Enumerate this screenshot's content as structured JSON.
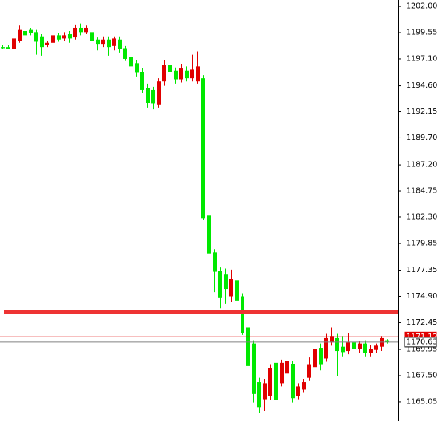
{
  "chart_data": {
    "type": "candlestick",
    "open": [
      1198.2,
      1198.2,
      1198.0,
      1198.8,
      1199.7,
      1199.8,
      1199.6,
      1199.2,
      1198.4,
      1198.6,
      1199.3,
      1199.0,
      1199.4,
      1199.1,
      1200.0,
      1199.6,
      1199.6,
      1198.9,
      1198.5,
      1198.9,
      1198.3,
      1198.9,
      1198.1,
      1197.3,
      1196.7,
      1195.9,
      1194.4,
      1194.2,
      1192.8,
      1195.0,
      1196.5,
      1196.0,
      1195.2,
      1196.0,
      1195.3,
      1195.0,
      1195.3,
      1182.5,
      1179.0,
      1177.3,
      1177.0,
      1174.9,
      1176.4,
      1174.9,
      1172.0,
      1170.5,
      1166.9,
      1165.3,
      1165.6,
      1168.7,
      1166.8,
      1167.7,
      1168.6,
      1165.6,
      1166.2,
      1167.3,
      1168.3,
      1170.1,
      1169.1,
      1170.6,
      1171.0,
      1170.2,
      1169.8,
      1170.6,
      1170.0,
      1170.5,
      1169.6,
      1169.9,
      1170.2,
      1170.8
    ],
    "high": [
      1198.4,
      1198.4,
      1199.6,
      1200.2,
      1200.0,
      1200.0,
      1199.8,
      1199.4,
      1198.8,
      1199.6,
      1199.5,
      1199.6,
      1199.7,
      1200.3,
      1200.4,
      1200.2,
      1199.8,
      1199.1,
      1199.2,
      1199.2,
      1199.2,
      1199.2,
      1198.3,
      1197.5,
      1197.0,
      1196.2,
      1194.8,
      1194.5,
      1195.3,
      1197.0,
      1196.9,
      1196.3,
      1196.6,
      1196.4,
      1197.5,
      1197.8,
      1195.6,
      1182.8,
      1179.3,
      1177.6,
      1177.5,
      1177.4,
      1176.7,
      1175.2,
      1172.3,
      1170.8,
      1167.3,
      1167.2,
      1168.5,
      1169.0,
      1169.0,
      1169.2,
      1168.9,
      1166.8,
      1167.2,
      1169.2,
      1171.0,
      1170.5,
      1171.4,
      1172.0,
      1171.4,
      1171.2,
      1171.5,
      1171.0,
      1170.7,
      1170.8,
      1170.4,
      1170.5,
      1171.2,
      1170.9
    ],
    "low": [
      1198.0,
      1198.0,
      1197.8,
      1198.6,
      1199.0,
      1199.3,
      1197.5,
      1197.4,
      1198.2,
      1198.4,
      1198.7,
      1198.8,
      1198.6,
      1198.9,
      1199.3,
      1199.4,
      1198.5,
      1197.9,
      1198.2,
      1197.4,
      1197.9,
      1197.7,
      1196.9,
      1196.0,
      1195.4,
      1193.9,
      1192.5,
      1192.4,
      1192.5,
      1194.6,
      1195.5,
      1194.8,
      1194.9,
      1195.0,
      1195.0,
      1194.8,
      1182.0,
      1178.5,
      1175.3,
      1173.8,
      1174.2,
      1174.4,
      1174.0,
      1171.3,
      1167.4,
      1165.0,
      1164.0,
      1164.2,
      1165.2,
      1164.8,
      1166.5,
      1167.3,
      1165.0,
      1165.3,
      1165.9,
      1167.0,
      1168.0,
      1168.0,
      1168.8,
      1170.3,
      1167.5,
      1169.3,
      1169.5,
      1169.4,
      1169.6,
      1169.3,
      1169.3,
      1169.6,
      1169.8,
      1170.5
    ],
    "close": [
      1198.1,
      1198.0,
      1199.0,
      1199.8,
      1199.3,
      1199.5,
      1198.7,
      1198.2,
      1198.6,
      1199.3,
      1198.9,
      1199.3,
      1199.0,
      1200.0,
      1199.6,
      1200.0,
      1198.8,
      1198.5,
      1198.9,
      1198.2,
      1199.0,
      1198.0,
      1197.1,
      1196.4,
      1195.8,
      1194.2,
      1193.0,
      1192.9,
      1195.0,
      1196.5,
      1195.9,
      1195.2,
      1196.2,
      1195.3,
      1196.1,
      1196.4,
      1182.2,
      1178.9,
      1177.2,
      1174.8,
      1175.6,
      1176.5,
      1174.5,
      1171.5,
      1168.4,
      1165.8,
      1164.5,
      1166.8,
      1168.2,
      1165.2,
      1168.7,
      1168.9,
      1165.4,
      1166.5,
      1166.9,
      1168.5,
      1170.0,
      1168.5,
      1171.0,
      1171.2,
      1169.8,
      1169.7,
      1170.6,
      1170.0,
      1170.5,
      1169.6,
      1170.0,
      1170.3,
      1171.0,
      1170.63
    ],
    "up_color": "#e00000",
    "down_color": "#00e800",
    "ylim": [
      1163.26,
      1202.6
    ],
    "yticks": [
      {
        "value": 1202,
        "label": "1202.00"
      },
      1199.55,
      {
        "value": 1197.1,
        "label": "1197.10"
      },
      {
        "value": 1194.6,
        "label": "1194.60"
      },
      1192.15,
      {
        "value": 1189.7,
        "label": "1189.70"
      },
      {
        "value": 1187.2,
        "label": "1187.20"
      },
      1184.75,
      {
        "value": 1182.3,
        "label": "1182.30"
      },
      1179.85,
      1177.35,
      {
        "value": 1174.9,
        "label": "1174.90"
      },
      1172.45,
      1169.95,
      {
        "value": 1167.5,
        "label": "1167.50"
      },
      1165.05
    ],
    "level_line": {
      "value": 1173.45,
      "color": "#ee3333"
    },
    "price_lines": [
      {
        "value": 1171.12,
        "color": "#e00000"
      },
      {
        "value": 1170.63,
        "color": "#808080"
      }
    ]
  }
}
